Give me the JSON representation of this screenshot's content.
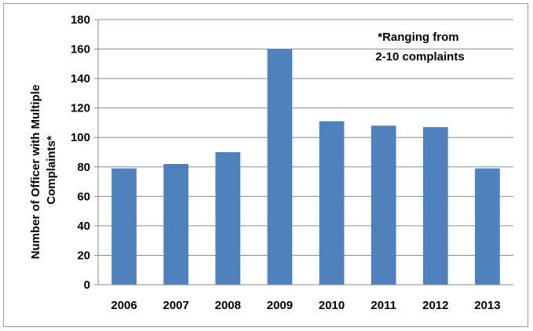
{
  "chart_data": {
    "type": "bar",
    "title": "",
    "xlabel": "",
    "ylabel_lines": [
      "Number of Officer with Multiple",
      "Complaints*"
    ],
    "categories": [
      "2006",
      "2007",
      "2008",
      "2009",
      "2010",
      "2011",
      "2012",
      "2013"
    ],
    "values": [
      79,
      82,
      90,
      160,
      111,
      108,
      107,
      79
    ],
    "ylim": [
      0,
      180
    ],
    "yticks": [
      0,
      20,
      40,
      60,
      80,
      100,
      120,
      140,
      160,
      180
    ],
    "grid": true,
    "legend": "none",
    "annotation_lines": [
      "*Ranging from",
      "2-10 complaints"
    ],
    "bar_color": "#4f81bd",
    "grid_color": "#8c8c8c"
  }
}
